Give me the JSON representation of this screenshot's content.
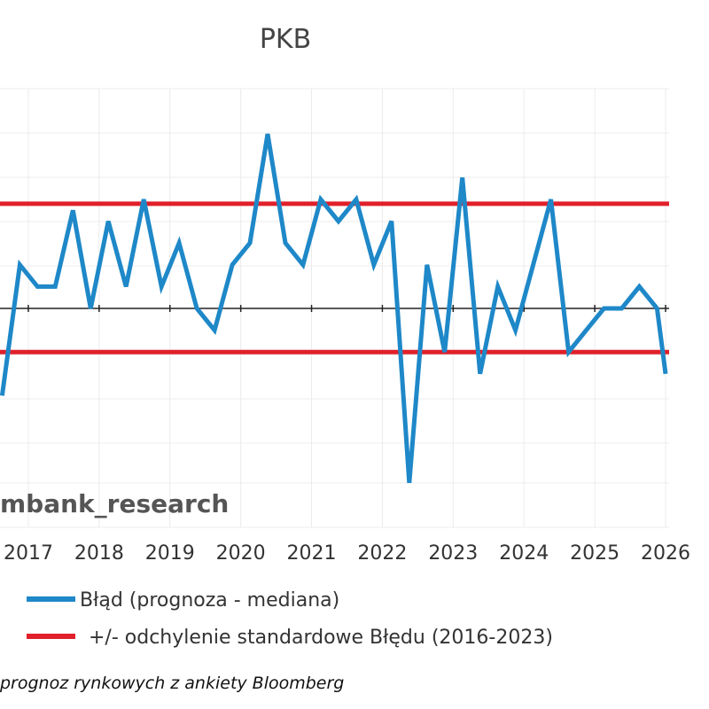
{
  "chart_data": {
    "type": "line",
    "title": "PKB",
    "xlabel": "",
    "ylabel": "",
    "x_ticks": [
      "2017",
      "2018",
      "2019",
      "2020",
      "2021",
      "2022",
      "2023",
      "2024",
      "2025",
      "2026"
    ],
    "xlim": [
      2016.6,
      2026.05
    ],
    "ylim": [
      -1.0,
      1.0
    ],
    "grid": true,
    "legend_position": "bottom-left",
    "series": [
      {
        "name": "Błąd (prognoza - mediana)",
        "color": "#1e88c8",
        "x": [
          2016.63,
          2016.88,
          2017.13,
          2017.38,
          2017.63,
          2017.88,
          2018.13,
          2018.38,
          2018.63,
          2018.88,
          2019.13,
          2019.38,
          2019.63,
          2019.88,
          2020.13,
          2020.38,
          2020.63,
          2020.88,
          2021.13,
          2021.38,
          2021.63,
          2021.88,
          2022.13,
          2022.38,
          2022.63,
          2022.88,
          2023.13,
          2023.38,
          2023.63,
          2023.88,
          2024.13,
          2024.38,
          2024.63,
          2024.88,
          2025.13,
          2025.38,
          2025.63,
          2025.88,
          2026.0
        ],
        "values": [
          -0.4,
          0.2,
          0.1,
          0.1,
          0.45,
          0.0,
          0.4,
          0.1,
          0.5,
          0.1,
          0.3,
          0.0,
          -0.1,
          0.2,
          0.3,
          0.8,
          0.3,
          0.2,
          0.5,
          0.4,
          0.5,
          0.2,
          0.4,
          -0.8,
          0.2,
          -0.2,
          0.6,
          -0.3,
          0.1,
          -0.1,
          0.2,
          0.5,
          -0.2,
          -0.1,
          0.0,
          0.0,
          0.1,
          0.0,
          -0.3
        ]
      },
      {
        "name": "+/- odchylenie standardowe Błędu (2016-2023)",
        "color": "#e0202a",
        "upper": 0.48,
        "lower": -0.2
      }
    ],
    "watermark": "mbank_research",
    "source": "prognoz rynkowych z ankiety Bloomberg"
  }
}
